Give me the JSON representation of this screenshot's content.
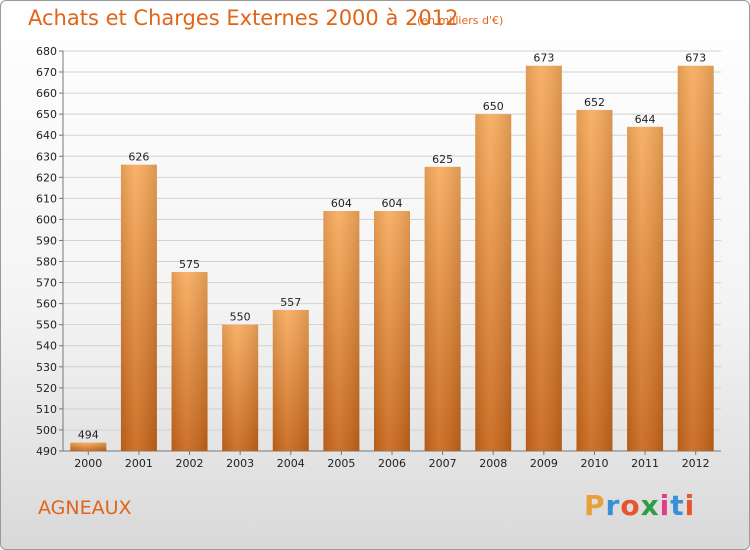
{
  "header": {
    "title": "Achats et Charges Externes 2000 à 2012",
    "unit": "(en milliers d'€)"
  },
  "footer": {
    "commune": "AGNEAUX",
    "brand": "Proxiti"
  },
  "colors": {
    "bar_light": "#f7a95a",
    "bar_dark": "#c8661a",
    "title": "#e0651a",
    "grid": "#cfcfcf"
  },
  "chart_data": {
    "type": "bar",
    "title": "Achats et Charges Externes 2000 à 2012",
    "categories": [
      "2000",
      "2001",
      "2002",
      "2003",
      "2004",
      "2005",
      "2006",
      "2007",
      "2008",
      "2009",
      "2010",
      "2011",
      "2012"
    ],
    "values": [
      494,
      626,
      575,
      550,
      557,
      604,
      604,
      625,
      650,
      673,
      652,
      644,
      673
    ],
    "ylim": [
      490,
      680
    ],
    "yticks": [
      490,
      500,
      510,
      520,
      530,
      540,
      550,
      560,
      570,
      580,
      590,
      600,
      610,
      620,
      630,
      640,
      650,
      660,
      670,
      680
    ],
    "grid": true
  }
}
